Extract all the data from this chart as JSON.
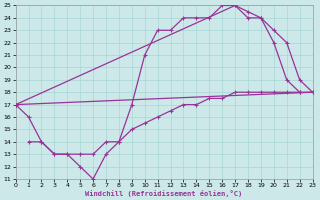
{
  "bg_color": "#cce8e8",
  "grid_color": "#a8d8d8",
  "line_color": "#993399",
  "xlabel": "Windchill (Refroidissement éolien,°C)",
  "xlim": [
    0,
    23
  ],
  "ylim": [
    11,
    25
  ],
  "xticks": [
    0,
    1,
    2,
    3,
    4,
    5,
    6,
    7,
    8,
    9,
    10,
    11,
    12,
    13,
    14,
    15,
    16,
    17,
    18,
    19,
    20,
    21,
    22,
    23
  ],
  "yticks": [
    11,
    12,
    13,
    14,
    15,
    16,
    17,
    18,
    19,
    20,
    21,
    22,
    23,
    24,
    25
  ],
  "line1_x": [
    0,
    1,
    2,
    3,
    4,
    5,
    6,
    7,
    8,
    9,
    10,
    11,
    12,
    13,
    14,
    15,
    16,
    17,
    18,
    19,
    20,
    21,
    22
  ],
  "line1_y": [
    17,
    16,
    14,
    13,
    13,
    12,
    11,
    13,
    14,
    17,
    21,
    23,
    23,
    24,
    24,
    24,
    25,
    25,
    24,
    24,
    22,
    19,
    18
  ],
  "line2_x": [
    0,
    17,
    18,
    19,
    20,
    21,
    22,
    23
  ],
  "line2_y": [
    17,
    25,
    24.5,
    24,
    23,
    22,
    19,
    18
  ],
  "line3_x": [
    0,
    23
  ],
  "line3_y": [
    17,
    18
  ],
  "line4_x": [
    1,
    2,
    3,
    4,
    5,
    6,
    7,
    8,
    9,
    10,
    11,
    12,
    13,
    14,
    15,
    16,
    17,
    18,
    19,
    20,
    21,
    22,
    23
  ],
  "line4_y": [
    14,
    14,
    13,
    13,
    13,
    13,
    14,
    14,
    15,
    15.5,
    16,
    16.5,
    17,
    17,
    17.5,
    17.5,
    18,
    18,
    18,
    18,
    18,
    18,
    18
  ]
}
